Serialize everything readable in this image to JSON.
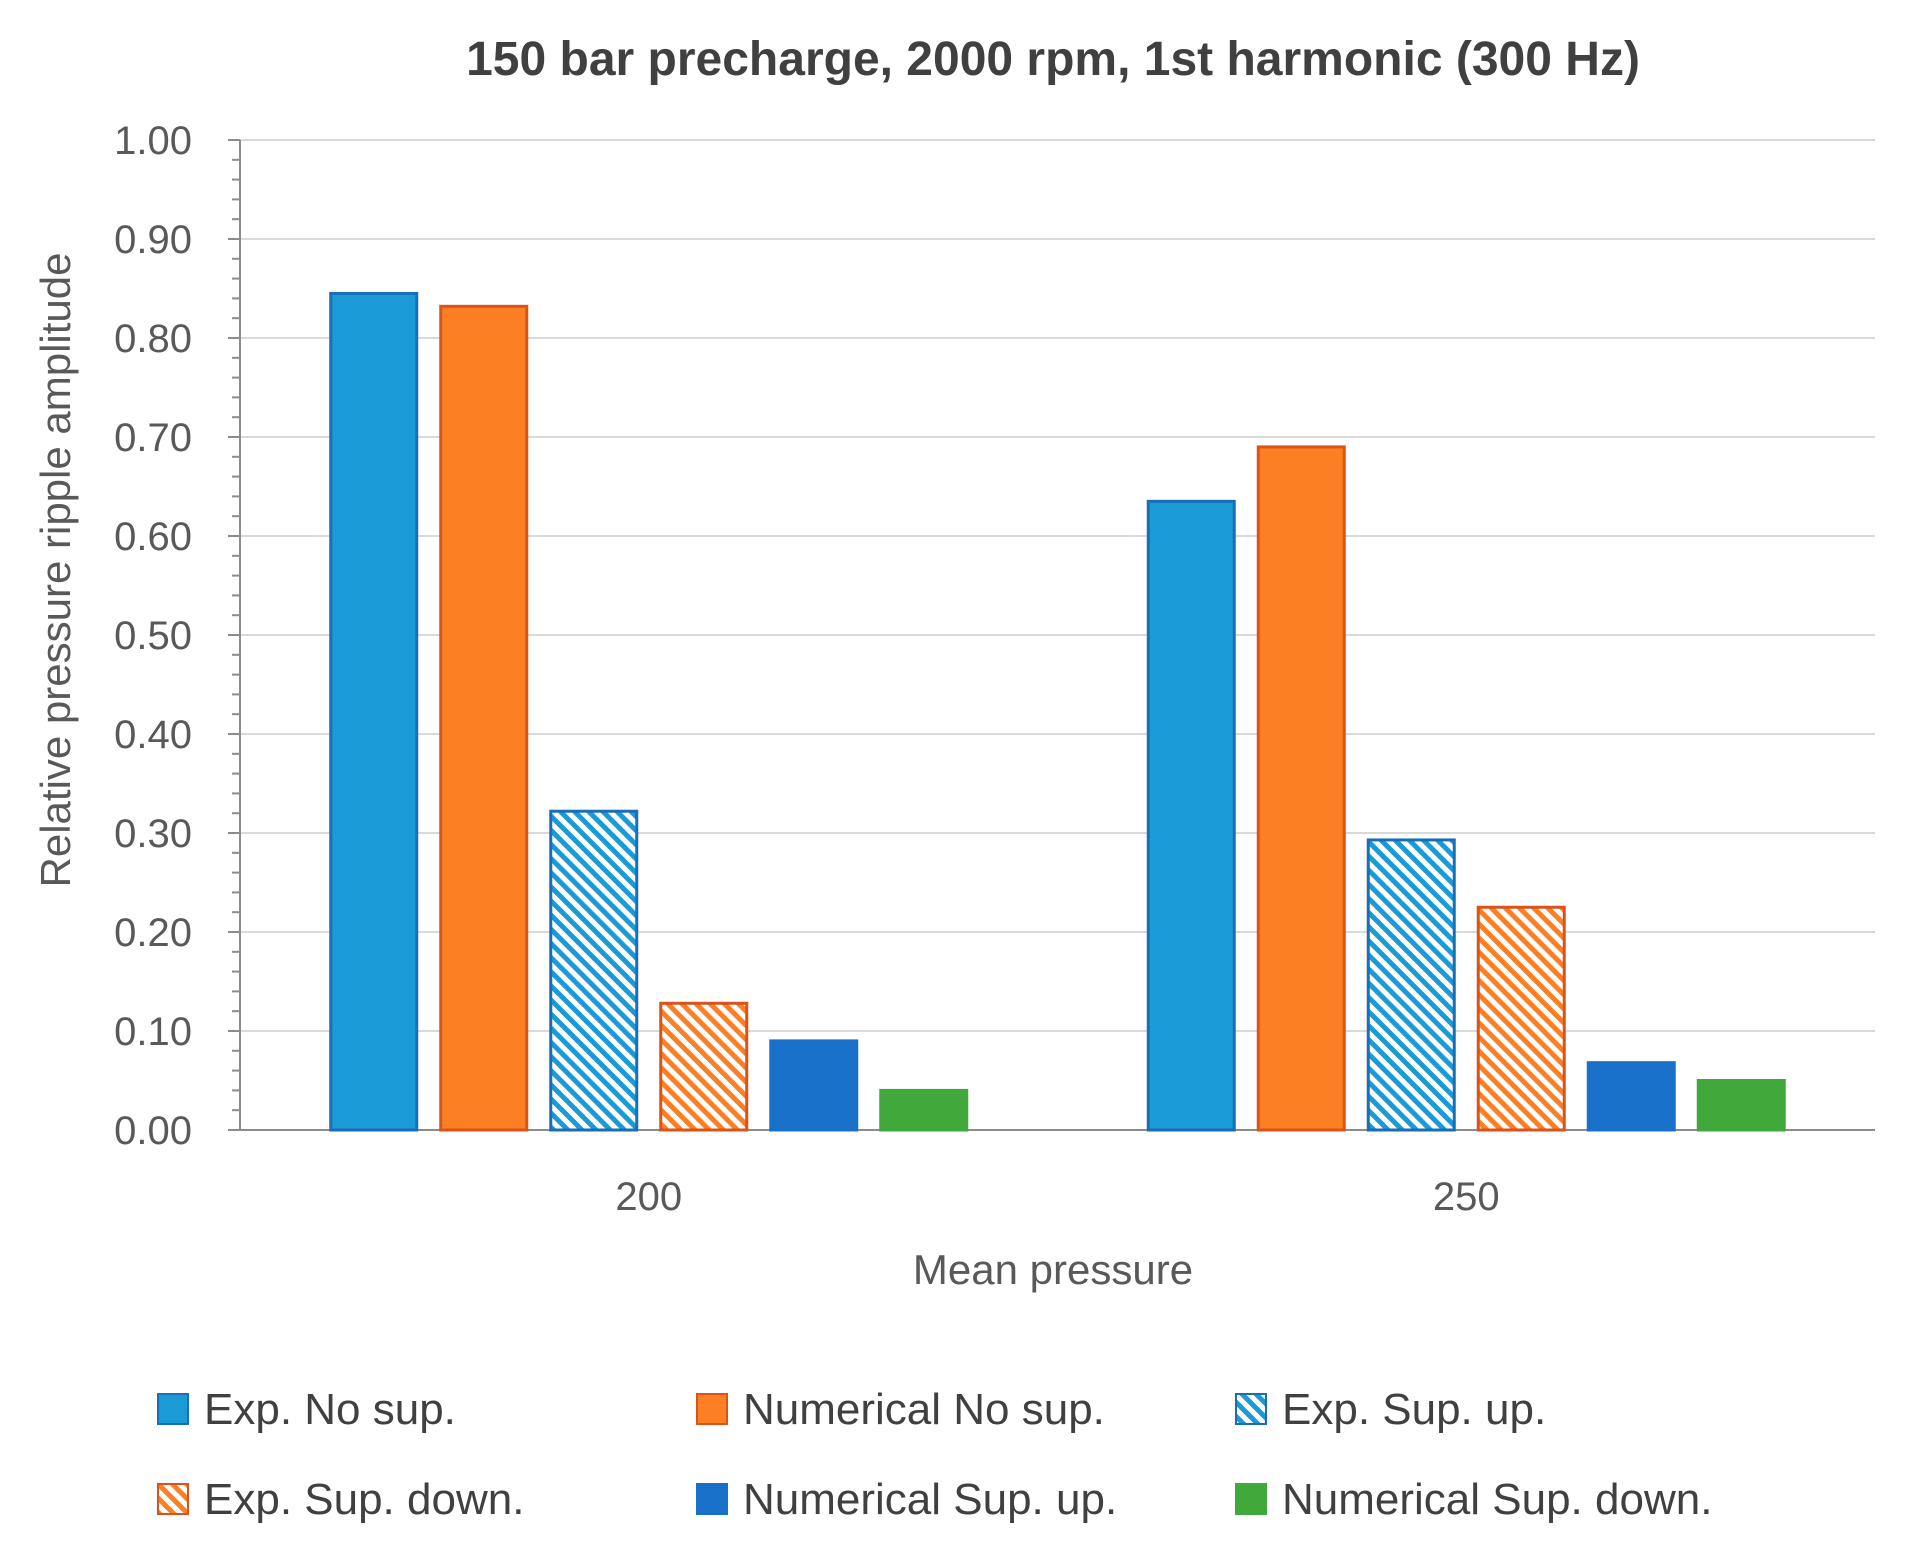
{
  "chart_data": {
    "type": "bar",
    "title": "150 bar precharge, 2000 rpm, 1st harmonic (300 Hz)",
    "xlabel": "Mean pressure",
    "ylabel": "Relative pressure ripple amplitude",
    "ylim": [
      0,
      1.0
    ],
    "yticks": [
      "0.00",
      "0.10",
      "0.20",
      "0.30",
      "0.40",
      "0.50",
      "0.60",
      "0.70",
      "0.80",
      "0.90",
      "1.00"
    ],
    "categories": [
      "200",
      "250"
    ],
    "grid": true,
    "legend_position": "bottom",
    "series": [
      {
        "name": "Exp. No sup.",
        "values": [
          0.845,
          0.635
        ],
        "color": "#1a9ad6",
        "edge": "#1a6fb4",
        "pattern": "solid"
      },
      {
        "name": "Numerical No sup.",
        "values": [
          0.832,
          0.69
        ],
        "color": "#fd7f23",
        "edge": "#d9531a",
        "pattern": "solid"
      },
      {
        "name": "Exp. Sup. up.",
        "values": [
          0.322,
          0.293
        ],
        "color": "#1a9ad6",
        "edge": "#1a6fb4",
        "pattern": "hatch"
      },
      {
        "name": "Exp. Sup. down.",
        "values": [
          0.128,
          0.225
        ],
        "color": "#fd7f23",
        "edge": "#d9531a",
        "pattern": "hatch"
      },
      {
        "name": "Numerical Sup. up.",
        "values": [
          0.09,
          0.068
        ],
        "color": "#1870c8",
        "edge": "#1870c8",
        "pattern": "solid"
      },
      {
        "name": "Numerical Sup. down.",
        "values": [
          0.04,
          0.05
        ],
        "color": "#41a93c",
        "edge": "#41a93c",
        "pattern": "solid"
      }
    ]
  }
}
